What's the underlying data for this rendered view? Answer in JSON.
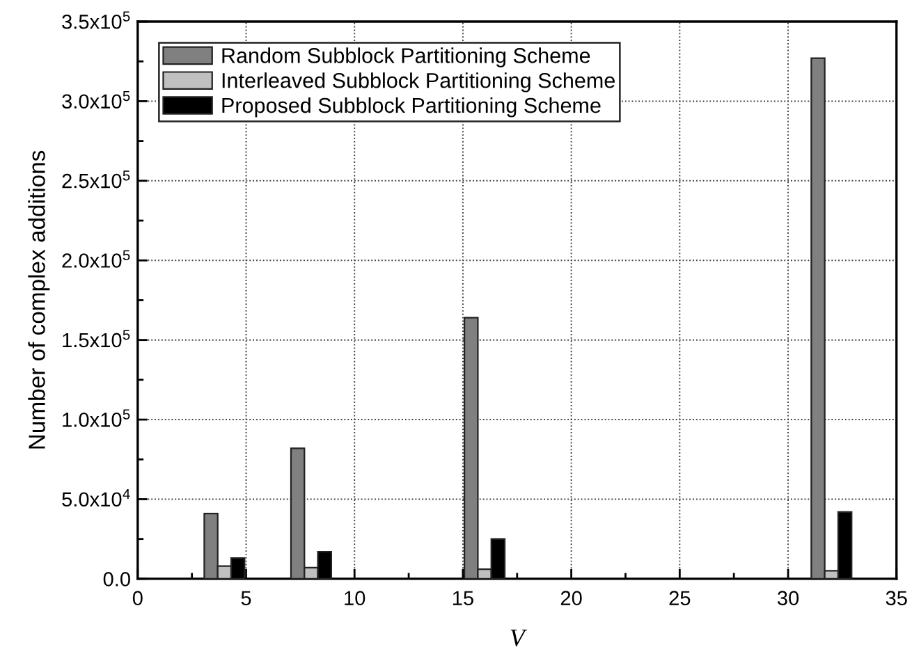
{
  "chart_data": {
    "type": "bar",
    "x": [
      4,
      8,
      16,
      32
    ],
    "xlabel": "V",
    "ylabel": "Number of complex additions",
    "series": [
      {
        "name": "Random Subblock Partitioning Scheme",
        "color": "#808080",
        "values": [
          41000,
          82000,
          164000,
          327000
        ]
      },
      {
        "name": "Interleaved Subblock Partitioning Scheme",
        "color": "#c0c0c0",
        "values": [
          8000,
          7000,
          6000,
          5000
        ]
      },
      {
        "name": "Proposed Subblock Partitioning Scheme",
        "color": "#000000",
        "values": [
          13000,
          17000,
          25000,
          42000
        ]
      }
    ],
    "xlim": [
      0,
      35
    ],
    "xticks": [
      0,
      5,
      10,
      15,
      20,
      25,
      30,
      35
    ],
    "ylim": [
      0,
      350000
    ],
    "yticks": [
      {
        "value": 0,
        "label": "0.0"
      },
      {
        "value": 50000,
        "label": "5.0x10$^{4}$"
      },
      {
        "value": 100000,
        "label": "1.0x10$^{5}$"
      },
      {
        "value": 150000,
        "label": "1.5x10$^{5}$"
      },
      {
        "value": 200000,
        "label": "2.0x10$^{5}$"
      },
      {
        "value": 250000,
        "label": "2.5x10$^{5}$"
      },
      {
        "value": 300000,
        "label": "3.0x10$^{5}$"
      },
      {
        "value": 350000,
        "label": "3.5x10$^{5}$"
      }
    ],
    "grid": true,
    "legend": "top left"
  }
}
